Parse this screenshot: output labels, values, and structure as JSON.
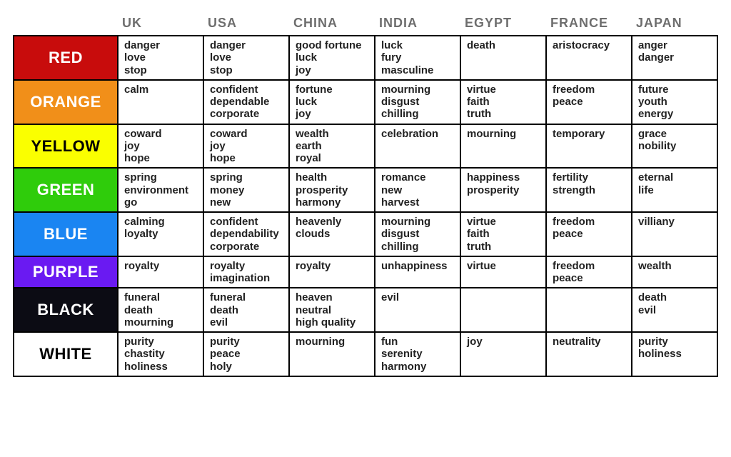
{
  "type": "table",
  "background_color": "#ffffff",
  "grid_color": "#000000",
  "header_text_color": "#6e6e6e",
  "cell_text_color": "#222222",
  "header_fontsize": 18,
  "swatch_label_fontsize": 22,
  "cell_fontsize": 15,
  "countries": [
    "UK",
    "USA",
    "CHINA",
    "INDIA",
    "EGYPT",
    "FRANCE",
    "JAPAN"
  ],
  "rows": [
    {
      "name": "RED",
      "bg": "#c80c0c",
      "fg": "#ffffff",
      "cells": [
        [
          "danger",
          "love",
          "stop"
        ],
        [
          "danger",
          "love",
          "stop"
        ],
        [
          "good fortune",
          "luck",
          "joy"
        ],
        [
          "luck",
          "fury",
          "masculine"
        ],
        [
          "death"
        ],
        [
          "aristocracy"
        ],
        [
          "anger",
          "danger"
        ]
      ]
    },
    {
      "name": "ORANGE",
      "bg": "#f18f19",
      "fg": "#ffffff",
      "cells": [
        [
          "calm"
        ],
        [
          "confident",
          "dependable",
          "corporate"
        ],
        [
          "fortune",
          "luck",
          "joy"
        ],
        [
          "mourning",
          "disgust",
          "chilling"
        ],
        [
          "virtue",
          "faith",
          "truth"
        ],
        [
          "freedom",
          "peace"
        ],
        [
          "future",
          "youth",
          "energy"
        ]
      ]
    },
    {
      "name": "YELLOW",
      "bg": "#faff00",
      "fg": "#000000",
      "cells": [
        [
          "coward",
          "joy",
          "hope"
        ],
        [
          "coward",
          "joy",
          "hope"
        ],
        [
          "wealth",
          "earth",
          "royal"
        ],
        [
          "celebration"
        ],
        [
          "mourning"
        ],
        [
          "temporary"
        ],
        [
          "grace",
          "nobility"
        ]
      ]
    },
    {
      "name": "GREEN",
      "bg": "#2fcc0b",
      "fg": "#ffffff",
      "cells": [
        [
          "spring",
          "environment",
          "go"
        ],
        [
          "spring",
          "money",
          "new"
        ],
        [
          "health",
          "prosperity",
          "harmony"
        ],
        [
          "romance",
          "new",
          "harvest"
        ],
        [
          "happiness",
          "prosperity"
        ],
        [
          "fertility",
          "strength"
        ],
        [
          "eternal",
          "life"
        ]
      ]
    },
    {
      "name": "BLUE",
      "bg": "#1a85f2",
      "fg": "#ffffff",
      "cells": [
        [
          "calming",
          "loyalty"
        ],
        [
          "confident",
          "dependability",
          "corporate"
        ],
        [
          "heavenly",
          "clouds"
        ],
        [
          "mourning",
          "disgust",
          "chilling"
        ],
        [
          "virtue",
          "faith",
          "truth"
        ],
        [
          "freedom",
          "peace"
        ],
        [
          "villiany"
        ]
      ]
    },
    {
      "name": "PURPLE",
      "bg": "#6a1af2",
      "fg": "#ffffff",
      "cells": [
        [
          "royalty"
        ],
        [
          "royalty",
          "imagination"
        ],
        [
          "royalty"
        ],
        [
          "unhappiness"
        ],
        [
          "virtue"
        ],
        [
          "freedom",
          "peace"
        ],
        [
          "wealth"
        ]
      ]
    },
    {
      "name": "BLACK",
      "bg": "#0c0c14",
      "fg": "#ffffff",
      "cells": [
        [
          "funeral",
          "death",
          "mourning"
        ],
        [
          "funeral",
          "death",
          "evil"
        ],
        [
          "heaven",
          "neutral",
          "high quality"
        ],
        [
          "evil"
        ],
        [],
        [],
        [
          "death",
          "evil"
        ]
      ]
    },
    {
      "name": "WHITE",
      "bg": "#ffffff",
      "fg": "#000000",
      "cells": [
        [
          "purity",
          "chastity",
          "holiness"
        ],
        [
          "purity",
          "peace",
          "holy"
        ],
        [
          "mourning"
        ],
        [
          "fun",
          "serenity",
          "harmony"
        ],
        [
          "joy"
        ],
        [
          "neutrality"
        ],
        [
          "purity",
          "holiness"
        ]
      ]
    }
  ]
}
